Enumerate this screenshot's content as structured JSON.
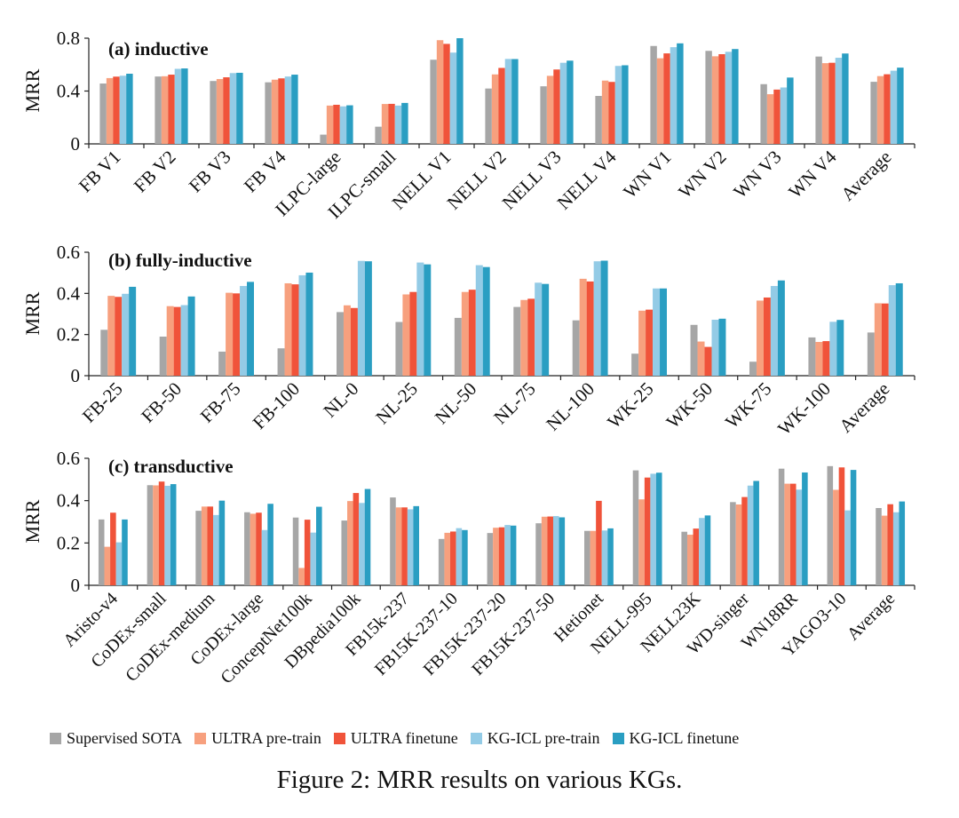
{
  "series_names": [
    "Supervised SOTA",
    "ULTRA pre-train",
    "ULTRA finetune",
    "KG-ICL pre-train",
    "KG-ICL finetune"
  ],
  "series_colors": [
    "#a6a6a6",
    "#f7a07e",
    "#f0533a",
    "#93cbe6",
    "#2a9ec2"
  ],
  "legend": {
    "items": [
      {
        "label": "Supervised SOTA",
        "color": "#a6a6a6"
      },
      {
        "label": "ULTRA pre-train",
        "color": "#f7a07e"
      },
      {
        "label": "ULTRA finetune",
        "color": "#f0533a"
      },
      {
        "label": "KG-ICL pre-train",
        "color": "#93cbe6"
      },
      {
        "label": "KG-ICL finetune",
        "color": "#2a9ec2"
      }
    ]
  },
  "caption": "Figure 2: MRR results on various KGs.",
  "chart_data": [
    {
      "type": "bar",
      "title": "(a) inductive",
      "ylabel": "MRR",
      "ylim": [
        0,
        0.8
      ],
      "yticks": [
        0,
        0.4,
        0.8
      ],
      "ytick_labels": [
        "0",
        "0.4",
        "0.8"
      ],
      "categories": [
        "FB V1",
        "FB V2",
        "FB V3",
        "FB V4",
        "ILPC-large",
        "ILPC-small",
        "NELL V1",
        "NELL V2",
        "NELL V3",
        "NELL V4",
        "WN V1",
        "WN V2",
        "WN V3",
        "WN V4",
        "Average"
      ],
      "series": [
        {
          "name": "Supervised SOTA",
          "values": [
            0.457,
            0.51,
            0.476,
            0.466,
            0.07,
            0.13,
            0.637,
            0.419,
            0.436,
            0.363,
            0.741,
            0.704,
            0.452,
            0.661,
            0.47
          ]
        },
        {
          "name": "ULTRA pre-train",
          "values": [
            0.498,
            0.512,
            0.491,
            0.486,
            0.29,
            0.302,
            0.785,
            0.526,
            0.515,
            0.479,
            0.648,
            0.663,
            0.376,
            0.611,
            0.513
          ]
        },
        {
          "name": "ULTRA finetune",
          "values": [
            0.509,
            0.524,
            0.504,
            0.496,
            0.296,
            0.303,
            0.757,
            0.575,
            0.563,
            0.469,
            0.685,
            0.679,
            0.411,
            0.614,
            0.527
          ]
        },
        {
          "name": "KG-ICL pre-train",
          "values": [
            0.516,
            0.568,
            0.536,
            0.51,
            0.284,
            0.29,
            0.691,
            0.643,
            0.614,
            0.59,
            0.732,
            0.697,
            0.427,
            0.652,
            0.554
          ]
        },
        {
          "name": "KG-ICL finetune",
          "values": [
            0.531,
            0.571,
            0.538,
            0.524,
            0.292,
            0.31,
            0.8,
            0.642,
            0.63,
            0.595,
            0.761,
            0.718,
            0.502,
            0.684,
            0.577
          ]
        }
      ]
    },
    {
      "type": "bar",
      "title": "(b) fully-inductive",
      "ylabel": "MRR",
      "ylim": [
        0,
        0.6
      ],
      "yticks": [
        0,
        0.2,
        0.4,
        0.6
      ],
      "ytick_labels": [
        "0",
        "0.2",
        "0.4",
        "0.6"
      ],
      "categories": [
        "FB-25",
        "FB-50",
        "FB-75",
        "FB-100",
        "NL-0",
        "NL-25",
        "NL-50",
        "NL-75",
        "NL-100",
        "WK-25",
        "WK-50",
        "WK-75",
        "WK-100",
        "Average"
      ],
      "series": [
        {
          "name": "Supervised SOTA",
          "values": [
            0.223,
            0.19,
            0.117,
            0.133,
            0.309,
            0.261,
            0.281,
            0.334,
            0.269,
            0.107,
            0.247,
            0.068,
            0.186,
            0.21
          ]
        },
        {
          "name": "ULTRA pre-train",
          "values": [
            0.388,
            0.338,
            0.403,
            0.449,
            0.342,
            0.395,
            0.407,
            0.368,
            0.471,
            0.316,
            0.166,
            0.365,
            0.164,
            0.352
          ]
        },
        {
          "name": "ULTRA finetune",
          "values": [
            0.383,
            0.334,
            0.4,
            0.444,
            0.329,
            0.407,
            0.418,
            0.374,
            0.458,
            0.321,
            0.14,
            0.38,
            0.168,
            0.351
          ]
        },
        {
          "name": "KG-ICL pre-train",
          "values": [
            0.398,
            0.343,
            0.436,
            0.488,
            0.558,
            0.55,
            0.537,
            0.452,
            0.556,
            0.424,
            0.272,
            0.436,
            0.262,
            0.44
          ]
        },
        {
          "name": "KG-ICL finetune",
          "values": [
            0.432,
            0.385,
            0.456,
            0.501,
            0.556,
            0.541,
            0.528,
            0.446,
            0.559,
            0.424,
            0.277,
            0.463,
            0.271,
            0.449
          ]
        }
      ]
    },
    {
      "type": "bar",
      "title": "(c) transductive",
      "ylabel": "MRR",
      "ylim": [
        0,
        0.6
      ],
      "yticks": [
        0,
        0.2,
        0.4,
        0.6
      ],
      "ytick_labels": [
        "0",
        "0.2",
        "0.4",
        "0.6"
      ],
      "categories": [
        "Aristo-v4",
        "CoDEx-small",
        "CoDEx-medium",
        "CoDEx-large",
        "ConceptNet100k",
        "DBpedia100k",
        "FB15k-237",
        "FB15K-237-10",
        "FB15K-237-20",
        "FB15K-237-50",
        "Hetionet",
        "NELL-995",
        "NELL23K",
        "WD-singer",
        "WN18RR",
        "YAGO3-10",
        "Average"
      ],
      "series": [
        {
          "name": "Supervised SOTA",
          "values": [
            0.311,
            0.473,
            0.352,
            0.345,
            0.32,
            0.306,
            0.415,
            0.219,
            0.247,
            0.293,
            0.257,
            0.543,
            0.253,
            0.393,
            0.551,
            0.563,
            0.365
          ]
        },
        {
          "name": "ULTRA pre-train",
          "values": [
            0.182,
            0.472,
            0.372,
            0.338,
            0.082,
            0.398,
            0.368,
            0.248,
            0.272,
            0.324,
            0.257,
            0.406,
            0.239,
            0.382,
            0.48,
            0.451,
            0.329
          ]
        },
        {
          "name": "ULTRA finetune",
          "values": [
            0.343,
            0.49,
            0.372,
            0.343,
            0.31,
            0.436,
            0.368,
            0.254,
            0.274,
            0.325,
            0.399,
            0.509,
            0.268,
            0.417,
            0.48,
            0.557,
            0.383
          ]
        },
        {
          "name": "KG-ICL pre-train",
          "values": [
            0.203,
            0.47,
            0.332,
            0.261,
            0.249,
            0.389,
            0.359,
            0.27,
            0.285,
            0.327,
            0.259,
            0.527,
            0.318,
            0.471,
            0.452,
            0.354,
            0.345
          ]
        },
        {
          "name": "KG-ICL finetune",
          "values": [
            0.311,
            0.478,
            0.4,
            0.385,
            0.371,
            0.455,
            0.374,
            0.261,
            0.282,
            0.321,
            0.269,
            0.532,
            0.33,
            0.493,
            0.533,
            0.545,
            0.396
          ]
        }
      ]
    }
  ]
}
